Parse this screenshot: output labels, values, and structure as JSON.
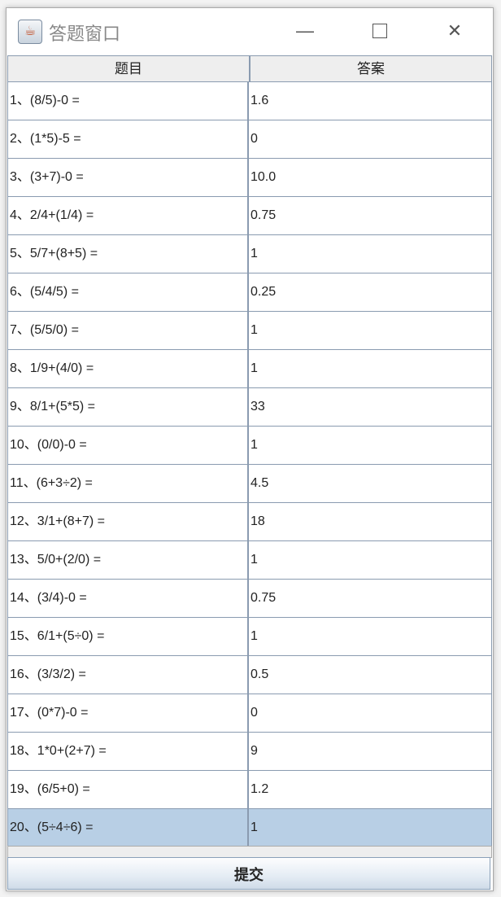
{
  "window": {
    "title": "答题窗口",
    "icon": "java-cup-icon"
  },
  "table": {
    "columns": [
      "题目",
      "答案"
    ],
    "rows": [
      [
        "1、(8/5)-0 =",
        "1.6"
      ],
      [
        "2、(1*5)-5 =",
        "0"
      ],
      [
        "3、(3+7)-0 =",
        "10.0"
      ],
      [
        "4、2/4+(1/4) =",
        "0.75"
      ],
      [
        "5、5/7+(8+5) =",
        "1"
      ],
      [
        "6、(5/4/5) =",
        "0.25"
      ],
      [
        "7、(5/5/0) =",
        "1"
      ],
      [
        "8、1/9+(4/0) =",
        "1"
      ],
      [
        "9、8/1+(5*5) =",
        "33"
      ],
      [
        "10、(0/0)-0 =",
        "1"
      ],
      [
        "11、(6+3÷2) =",
        "4.5"
      ],
      [
        "12、3/1+(8+7) =",
        "18"
      ],
      [
        "13、5/0+(2/0) =",
        "1"
      ],
      [
        "14、(3/4)-0 =",
        "0.75"
      ],
      [
        "15、6/1+(5÷0) =",
        "1"
      ],
      [
        "16、(3/3/2) =",
        "0.5"
      ],
      [
        "17、(0*7)-0 =",
        "0"
      ],
      [
        "18、1*0+(2+7) =",
        "9"
      ],
      [
        "19、(6/5+0) =",
        "1.2"
      ],
      [
        "20、(5÷4÷6) =",
        "1"
      ]
    ],
    "selected_row": 20,
    "selection_color": "#b8cfe5"
  },
  "submit_label": "提交"
}
